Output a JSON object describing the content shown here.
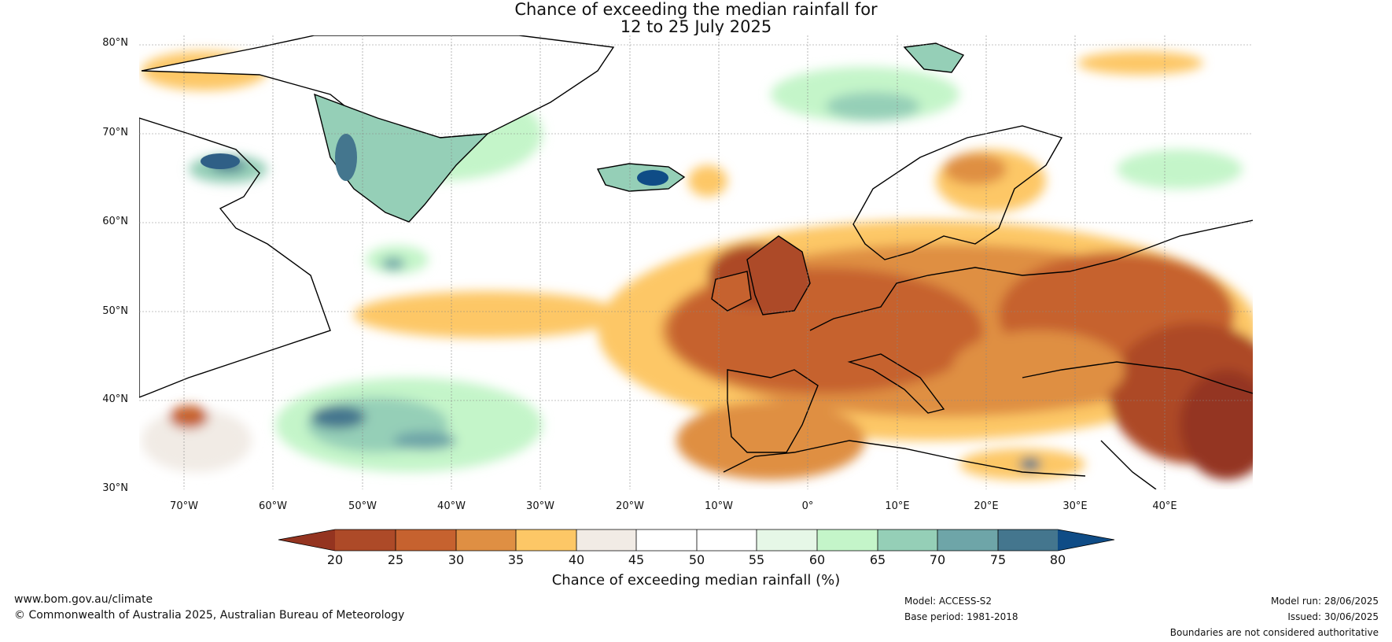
{
  "title": {
    "line1": "Chance of exceeding the median rainfall for",
    "line2": "12 to 25 July 2025"
  },
  "map": {
    "lat_labels": [
      "80°N",
      "70°N",
      "60°N",
      "50°N",
      "40°N",
      "30°N"
    ],
    "lon_labels": [
      "70°W",
      "60°W",
      "50°W",
      "40°W",
      "30°W",
      "20°W",
      "10°W",
      "0°",
      "10°E",
      "20°E",
      "30°E",
      "40°E"
    ],
    "lat_range": [
      30,
      80
    ],
    "lon_range": [
      -75,
      50
    ],
    "grid": true
  },
  "colorbar": {
    "title": "Chance of exceeding median rainfall (%)",
    "ticks": [
      "20",
      "25",
      "30",
      "35",
      "40",
      "45",
      "50",
      "55",
      "60",
      "65",
      "70",
      "75",
      "80"
    ],
    "under_color": "#943420",
    "over_color": "#0f4c86",
    "colors": [
      "#ad4a28",
      "#c6622f",
      "#df8f43",
      "#fdc766",
      "#f1ebe5",
      "#ffffff",
      "#ffffff",
      "#e6f7e7",
      "#c4f5c9",
      "#95cfb7",
      "#6ea5a8",
      "#44768e"
    ]
  },
  "footer": {
    "url": "www.bom.gov.au/climate",
    "copyright": "© Commonwealth of Australia 2025, Australian Bureau of Meteorology",
    "model": "Model: ACCESS-S2",
    "base_period": "Base period: 1981-2018",
    "model_run": "Model run: 28/06/2025",
    "issued": "Issued: 30/06/2025",
    "boundaries": "Boundaries are not considered authoritative"
  }
}
